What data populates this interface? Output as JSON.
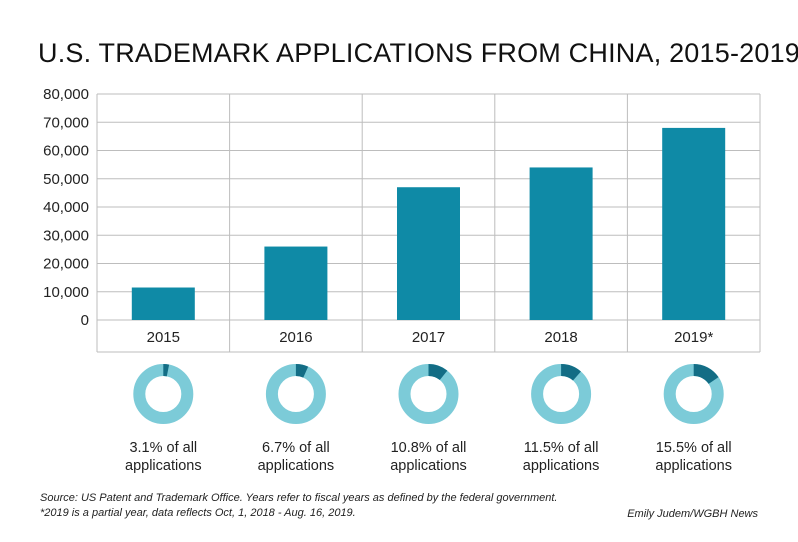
{
  "colors": {
    "bar": "#0f8aa6",
    "donut_ring": "#7ccbd8",
    "donut_share": "#136d85",
    "grid": "#bdbdbd",
    "text": "#222222"
  },
  "chart_data": {
    "type": "bar",
    "title": "U.S. TRADEMARK APPLICATIONS FROM CHINA, 2015-2019",
    "xlabel": "",
    "ylabel": "",
    "categories": [
      "2015",
      "2016",
      "2017",
      "2018",
      "2019*"
    ],
    "values": [
      11500,
      26000,
      47000,
      54000,
      68000
    ],
    "ylim": [
      0,
      80000
    ],
    "yticks": [
      0,
      10000,
      20000,
      30000,
      40000,
      50000,
      60000,
      70000,
      80000
    ],
    "ytick_labels": [
      "0",
      "10,000",
      "20,000",
      "30,000",
      "40,000",
      "50,000",
      "60,000",
      "70,000",
      "80,000"
    ],
    "grid": true,
    "shares": [
      {
        "value": 3.1,
        "line1": "3.1% of all",
        "line2": "applications"
      },
      {
        "value": 6.7,
        "line1": "6.7% of all",
        "line2": "applications"
      },
      {
        "value": 10.8,
        "line1": "10.8% of all",
        "line2": "applications"
      },
      {
        "value": 11.5,
        "line1": "11.5% of all",
        "line2": "applications"
      },
      {
        "value": 15.5,
        "line1": "15.5% of all",
        "line2": "applications"
      }
    ]
  },
  "footer": {
    "source": "Source: US Patent and Trademark Office. Years refer to fiscal years as defined by the federal government.",
    "note": "*2019 is a partial year, data reflects Oct, 1, 2018 - Aug. 16, 2019.",
    "credit": "Emily Judem/WGBH News"
  }
}
